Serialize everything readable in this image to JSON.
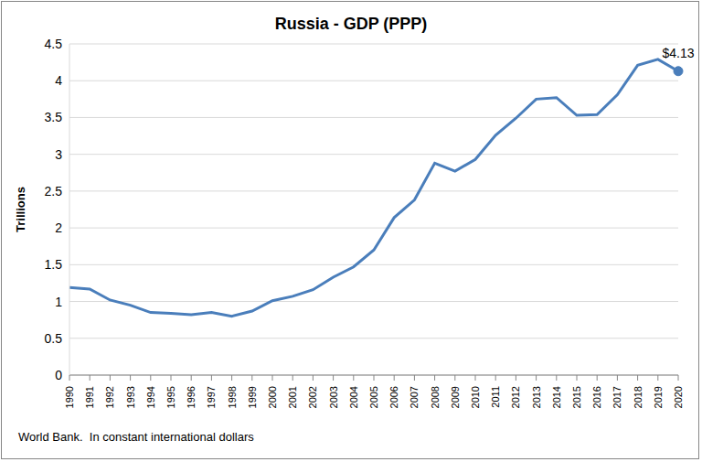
{
  "chart_data": {
    "type": "line",
    "title": "Russia - GDP (PPP)",
    "y_label": "Trillions",
    "footnote": "World Bank.  In constant international dollars",
    "categories": [
      "1990",
      "1991",
      "1992",
      "1993",
      "1994",
      "1995",
      "1996",
      "1997",
      "1998",
      "1999",
      "2000",
      "2001",
      "2002",
      "2003",
      "2004",
      "2005",
      "2006",
      "2007",
      "2008",
      "2009",
      "2010",
      "2011",
      "2012",
      "2013",
      "2014",
      "2015",
      "2016",
      "2017",
      "2018",
      "2019",
      "2020"
    ],
    "values": [
      1.19,
      1.17,
      1.02,
      0.95,
      0.85,
      0.84,
      0.82,
      0.85,
      0.8,
      0.87,
      1.01,
      1.07,
      1.16,
      1.33,
      1.47,
      1.7,
      2.14,
      2.38,
      2.88,
      2.77,
      2.93,
      3.26,
      3.49,
      3.75,
      3.77,
      3.53,
      3.54,
      3.81,
      4.21,
      4.29,
      4.13
    ],
    "color": "#4a7ebb",
    "ylim": [
      0,
      4.5
    ],
    "yticks": [
      0,
      0.5,
      1,
      1.5,
      2,
      2.5,
      3,
      3.5,
      4,
      4.5
    ],
    "grid": true,
    "annotations": [
      {
        "x": "2020",
        "y": 4.13,
        "text": "$4.13"
      }
    ]
  }
}
